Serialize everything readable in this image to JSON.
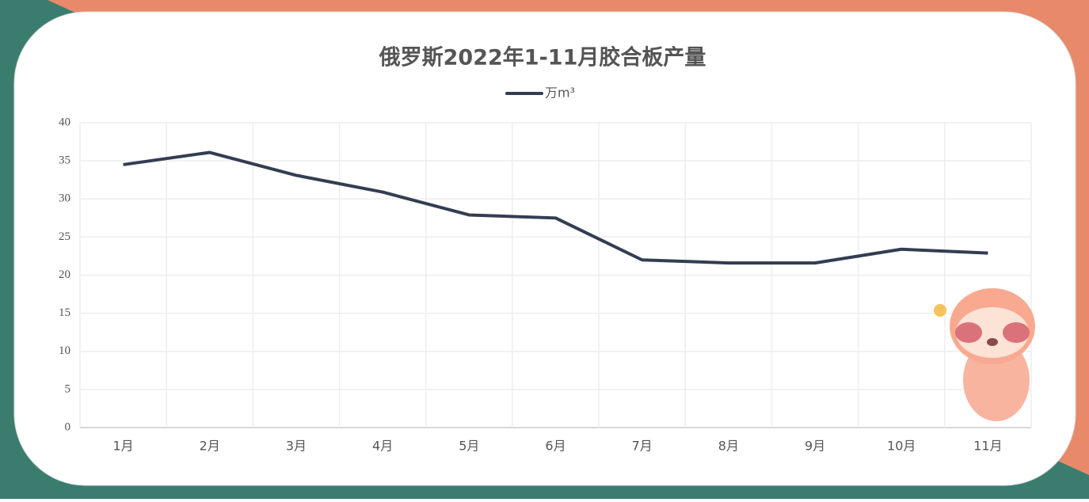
{
  "chart_data": {
    "type": "line",
    "title": "俄罗斯2022年1-11月胶合板产量",
    "categories": [
      "1月",
      "2月",
      "3月",
      "4月",
      "5月",
      "6月",
      "7月",
      "8月",
      "9月",
      "10月",
      "11月"
    ],
    "series": [
      {
        "name": "万m³",
        "color": "#333d52",
        "values": [
          34.5,
          36.1,
          33.1,
          30.9,
          27.9,
          27.5,
          22.0,
          21.6,
          21.6,
          23.4,
          22.9
        ]
      }
    ],
    "ylim": [
      0,
      40
    ],
    "yticks": [
      0,
      5,
      10,
      15,
      20,
      25,
      30,
      35,
      40
    ],
    "grid": true,
    "legend": "top"
  }
}
